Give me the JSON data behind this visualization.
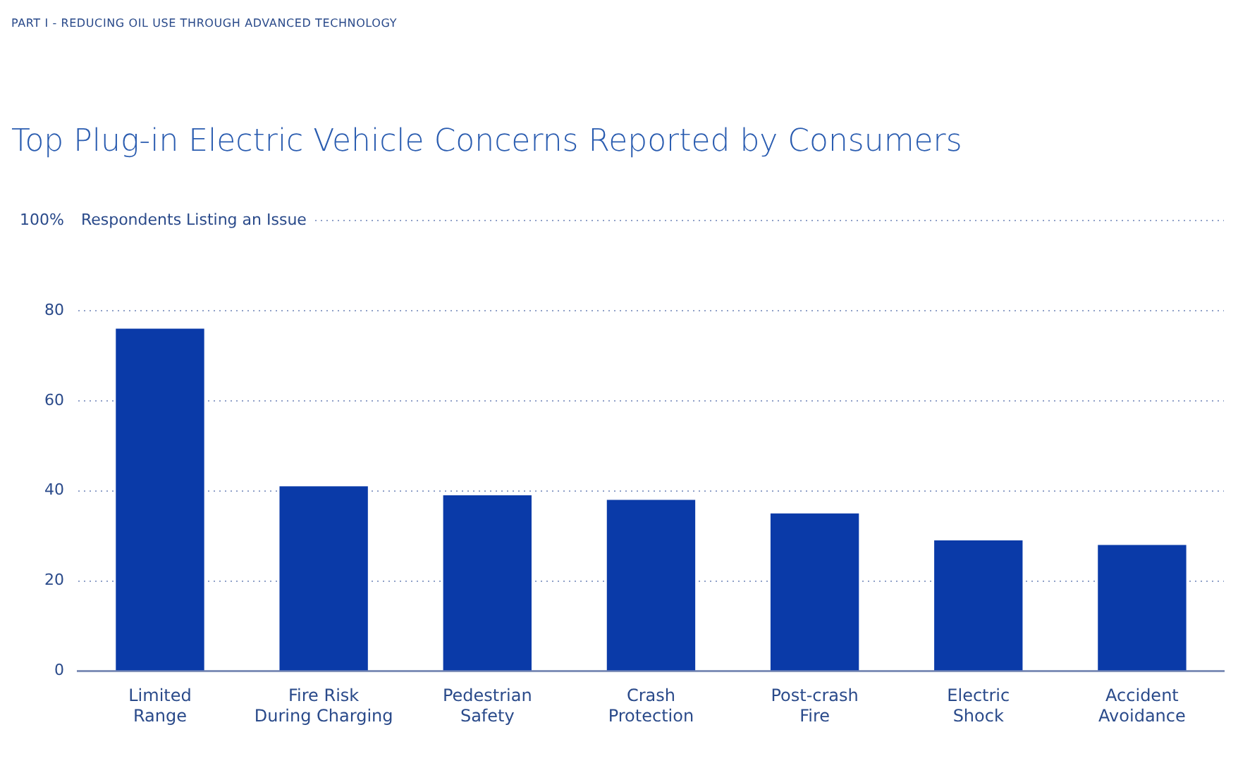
{
  "chart_data": {
    "type": "bar",
    "title": "Top Plug-in Electric Vehicle Concerns Reported by Consumers",
    "ylabel": "Respondents Listing an Issue",
    "annotations": [
      "PART I  -  REDUCING OIL USE THROUGH ADVANCED TECHNOLOGY"
    ],
    "categories": [
      "Limited Range",
      "Fire Risk During Charging",
      "Pedestrian Safety",
      "Crash Protection",
      "Post-crash Fire",
      "Electric Shock",
      "Accident Avoidance"
    ],
    "values": [
      76,
      41,
      39,
      38,
      35,
      29,
      28
    ],
    "color": "#0a3aa8",
    "ylim": [
      0,
      100
    ],
    "yticks": [
      0,
      20,
      40,
      60,
      80,
      {
        "value": 100,
        "label": "100%"
      }
    ],
    "grid": "y",
    "legend": false
  }
}
